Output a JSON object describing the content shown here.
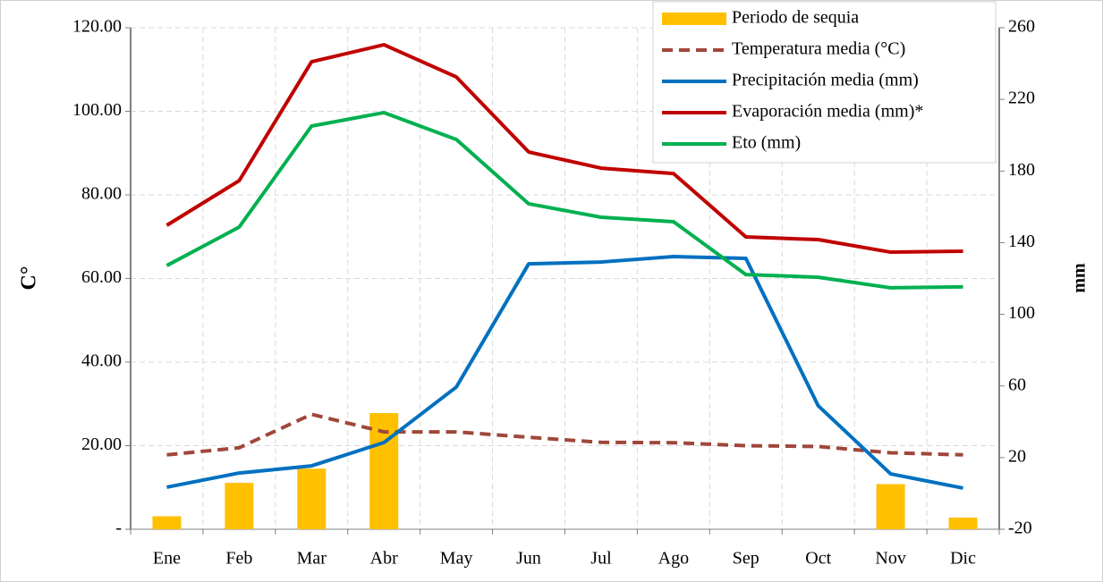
{
  "chart_data": {
    "type": "line",
    "categories": [
      "Ene",
      "Feb",
      "Mar",
      "Abr",
      "May",
      "Jun",
      "Jul",
      "Ago",
      "Sep",
      "Oct",
      "Nov",
      "Dic"
    ],
    "ylabel": "C°",
    "y2label": "mm",
    "ylim": [
      0,
      120
    ],
    "yticks": [
      {
        "value": 0,
        "label": "-"
      },
      {
        "value": 20,
        "label": "20.00"
      },
      {
        "value": 40,
        "label": "40.00"
      },
      {
        "value": 60,
        "label": "60.00"
      },
      {
        "value": 80,
        "label": "80.00"
      },
      {
        "value": 100,
        "label": "100.00"
      },
      {
        "value": 120,
        "label": "120.00"
      }
    ],
    "y2lim": [
      -20,
      260
    ],
    "y2ticks": [
      -20,
      20,
      60,
      100,
      140,
      180,
      220,
      260
    ],
    "grid": true,
    "legend": "upper right",
    "series": [
      {
        "name": "Periodo de sequia",
        "type": "bar",
        "color": "#ffc000",
        "values": [
          3.1,
          11.1,
          14.5,
          27.8,
          0,
          0,
          0,
          0,
          0,
          0,
          10.8,
          2.8
        ]
      },
      {
        "name": "Temperatura media (°C)",
        "type": "line",
        "dashed": true,
        "color": "#a0473a",
        "values": [
          17.8,
          19.5,
          27.5,
          23.3,
          23.3,
          22.0,
          20.8,
          20.7,
          20.0,
          19.8,
          18.3,
          17.8
        ]
      },
      {
        "name": "Precipitación media (mm)",
        "type": "line",
        "axis": "y2",
        "color": "#0070c0",
        "values": [
          3.5,
          11.4,
          15.4,
          28.4,
          59.4,
          128.2,
          129.2,
          132.2,
          131.2,
          48.9,
          10.9,
          3.0
        ]
      },
      {
        "name": "Evaporación media (mm)*",
        "type": "line",
        "axis": "y2",
        "color": "#c00000",
        "values": [
          149.7,
          174.6,
          241.0,
          250.5,
          232.5,
          190.6,
          181.6,
          178.6,
          143.2,
          141.7,
          134.7,
          135.2
        ]
      },
      {
        "name": "Eto (mm)",
        "type": "line",
        "axis": "y2",
        "color": "#00b050",
        "values": [
          127.2,
          148.7,
          205.1,
          212.6,
          197.6,
          161.7,
          154.2,
          151.7,
          122.2,
          120.7,
          114.8,
          115.3
        ]
      }
    ]
  }
}
